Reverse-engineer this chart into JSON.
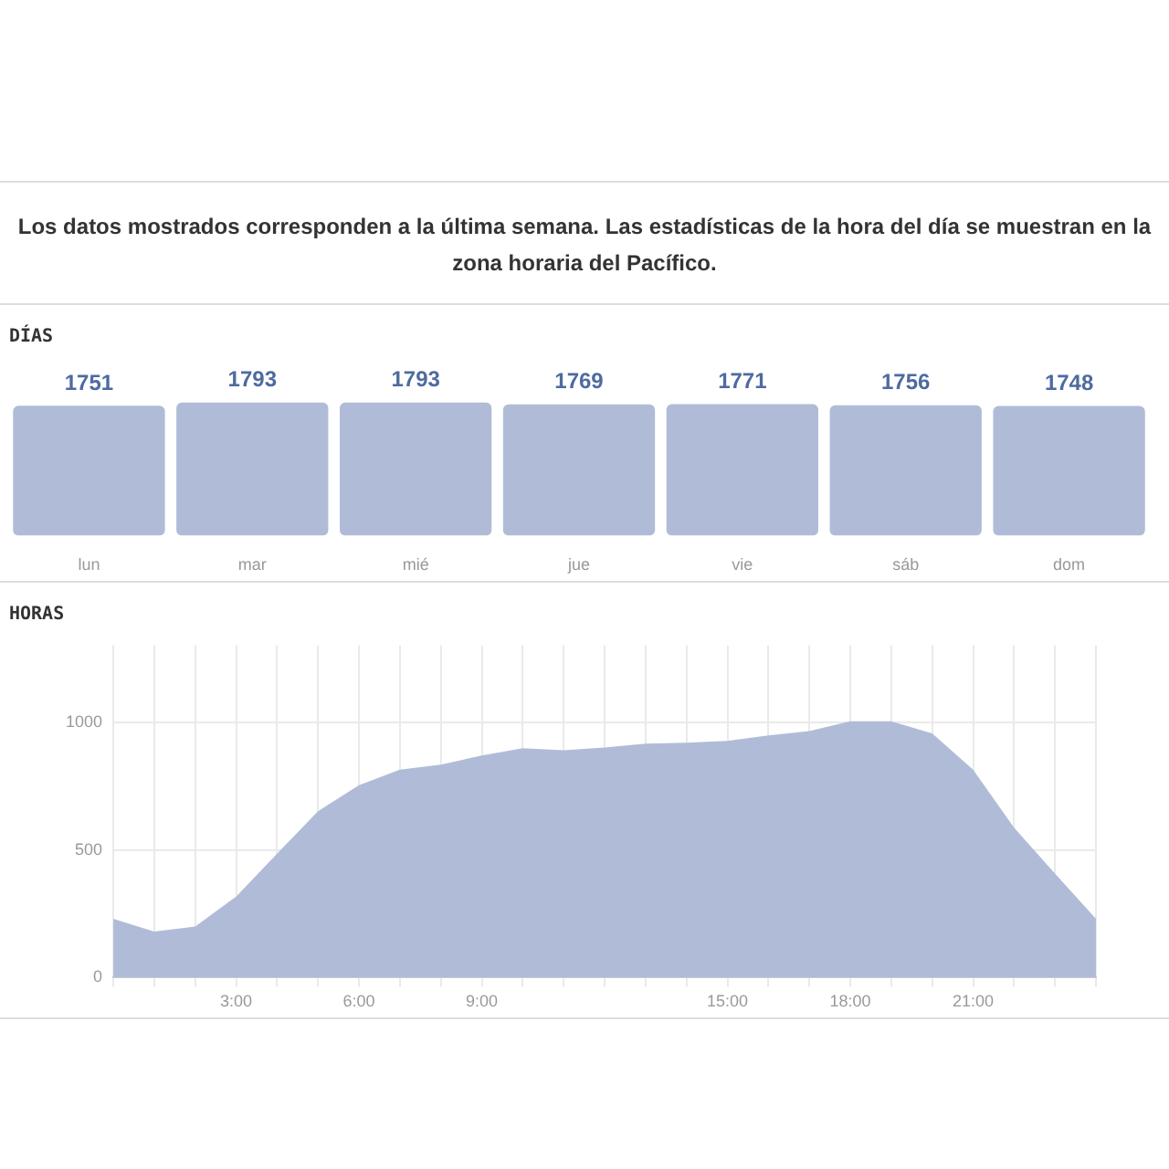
{
  "chart_data": [
    {
      "type": "bar",
      "title": "Los datos mostrados corresponden a la última semana. Las estadísticas de la hora del día se muestran en la zona horaria del Pacífico.",
      "subtitle": "DÍAS",
      "categories": [
        "lun",
        "mar",
        "mié",
        "jue",
        "vie",
        "sáb",
        "dom"
      ],
      "values": [
        1751,
        1793,
        1793,
        1769,
        1771,
        1756,
        1748
      ],
      "color": "#b0bcd7",
      "data_labels": true,
      "grid": false
    },
    {
      "type": "area",
      "title": "HORAS",
      "x": [
        0,
        1,
        2,
        3,
        4,
        5,
        6,
        7,
        8,
        9,
        10,
        11,
        12,
        13,
        14,
        15,
        16,
        17,
        18,
        19,
        20,
        21,
        22,
        23,
        24
      ],
      "values": [
        230,
        180,
        200,
        317,
        485,
        651,
        753,
        814,
        834,
        869,
        898,
        890,
        901,
        916,
        919,
        927,
        948,
        965,
        1003,
        1003,
        956,
        814,
        587,
        407,
        230
      ],
      "color": "#b0bcd7",
      "marker": "none",
      "grid": true,
      "xlim": [
        0,
        24
      ],
      "ylim": [
        0,
        1300
      ],
      "yticks": [
        0,
        500,
        1000
      ],
      "xticks": [
        {
          "value": 0,
          "label": null
        },
        {
          "value": 1,
          "label": null
        },
        {
          "value": 2,
          "label": null
        },
        {
          "value": 3,
          "label": "3:00"
        },
        {
          "value": 4,
          "label": null
        },
        {
          "value": 5,
          "label": null
        },
        {
          "value": 6,
          "label": "6:00"
        },
        {
          "value": 7,
          "label": null
        },
        {
          "value": 8,
          "label": null
        },
        {
          "value": 9,
          "label": "9:00"
        },
        {
          "value": 10,
          "label": null
        },
        {
          "value": 11,
          "label": null
        },
        {
          "value": 12,
          "label": null
        },
        {
          "value": 13,
          "label": null
        },
        {
          "value": 14,
          "label": null
        },
        {
          "value": 15,
          "label": "15:00"
        },
        {
          "value": 16,
          "label": null
        },
        {
          "value": 17,
          "label": null
        },
        {
          "value": 18,
          "label": "18:00"
        },
        {
          "value": 19,
          "label": null
        },
        {
          "value": 20,
          "label": null
        },
        {
          "value": 21,
          "label": "21:00"
        },
        {
          "value": 22,
          "label": null
        },
        {
          "value": 23,
          "label": null
        },
        {
          "value": 24,
          "label": null
        }
      ]
    }
  ]
}
